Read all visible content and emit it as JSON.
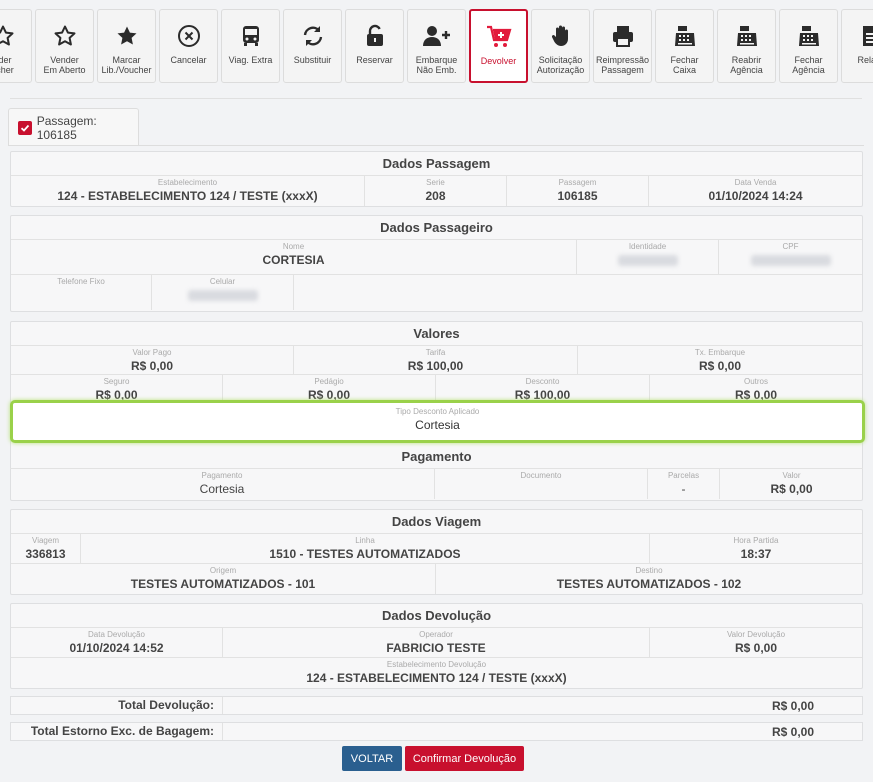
{
  "toolbar": [
    {
      "name": "sell-button",
      "icon": "star-outline-icon",
      "label": "nder\nucher"
    },
    {
      "name": "sell-open-button",
      "icon": "star-outline-icon",
      "label": "Vender\nEm Aberto"
    },
    {
      "name": "mark-lib-voucher-button",
      "icon": "star-solid-icon",
      "label": "Marcar\nLib./Voucher"
    },
    {
      "name": "cancel-button",
      "icon": "circle-x-icon",
      "label": "Cancelar"
    },
    {
      "name": "extra-trip-button",
      "icon": "bus-icon",
      "label": "Viag. Extra"
    },
    {
      "name": "replace-button",
      "icon": "sync-icon",
      "label": "Substituir"
    },
    {
      "name": "reserve-button",
      "icon": "unlock-icon",
      "label": "Reservar"
    },
    {
      "name": "boarding-not-emb-button",
      "icon": "user-plus-icon",
      "label": "Embarque\nNão Emb."
    },
    {
      "name": "return-button",
      "icon": "cart-plus-icon",
      "label": "Devolver",
      "active": true
    },
    {
      "name": "request-authorization-button",
      "icon": "hand-icon",
      "label": "Solicitação\nAutorização"
    },
    {
      "name": "reprint-ticket-button",
      "icon": "printer-icon",
      "label": "Reimpressão\nPassagem"
    },
    {
      "name": "close-cashier-button",
      "icon": "cash-register-icon",
      "label": "Fechar\nCaixa"
    },
    {
      "name": "reopen-agency-button",
      "icon": "cash-register-icon",
      "label": "Reabrir\nAgência"
    },
    {
      "name": "close-agency-button",
      "icon": "cash-register-icon",
      "label": "Fechar\nAgência"
    },
    {
      "name": "reports-button",
      "icon": "document-icon",
      "label": "Relató"
    }
  ],
  "tab": {
    "label": "Passagem: 106185"
  },
  "dados_passagem": {
    "title": "Dados Passagem",
    "estabelecimento_cap": "Estabelecimento",
    "estabelecimento": "124 - ESTABELECIMENTO 124 / TESTE (xxxX)",
    "serie_cap": "Serie",
    "serie": "208",
    "passagem_cap": "Passagem",
    "passagem": "106185",
    "data_venda_cap": "Data Venda",
    "data_venda": "01/10/2024 14:24"
  },
  "dados_passageiro": {
    "title": "Dados Passageiro",
    "nome_cap": "Nome",
    "nome": "CORTESIA",
    "identidade_cap": "Identidade",
    "cpf_cap": "CPF",
    "telefone_cap": "Telefone Fixo",
    "celular_cap": "Celular"
  },
  "valores": {
    "title": "Valores",
    "valor_pago_cap": "Valor Pago",
    "valor_pago": "R$ 0,00",
    "tarifa_cap": "Tarifa",
    "tarifa": "R$ 100,00",
    "tx_embarque_cap": "Tx. Embarque",
    "tx_embarque": "R$ 0,00",
    "seguro_cap": "Seguro",
    "seguro": "R$ 0,00",
    "pedagio_cap": "Pedágio",
    "pedagio": "R$ 0,00",
    "desconto_cap": "Desconto",
    "desconto": "R$ 100,00",
    "outros_cap": "Outros",
    "outros": "R$ 0,00",
    "tipo_desconto_cap": "Tipo Desconto Aplicado",
    "tipo_desconto": "Cortesia"
  },
  "pagamento": {
    "title": "Pagamento",
    "pagamento_cap": "Pagamento",
    "pagamento": "Cortesia",
    "documento_cap": "Documento",
    "documento": "",
    "parcelas_cap": "Parcelas",
    "parcelas": "-",
    "valor_cap": "Valor",
    "valor": "R$ 0,00"
  },
  "dados_viagem": {
    "title": "Dados Viagem",
    "viagem_cap": "Viagem",
    "viagem": "336813",
    "linha_cap": "Linha",
    "linha": "1510 - TESTES AUTOMATIZADOS",
    "hora_cap": "Hora Partida",
    "hora": "18:37",
    "origem_cap": "Origem",
    "origem": "TESTES AUTOMATIZADOS - 101",
    "destino_cap": "Destino",
    "destino": "TESTES AUTOMATIZADOS - 102"
  },
  "dados_devolucao": {
    "title": "Dados Devolução",
    "data_cap": "Data Devolução",
    "data": "01/10/2024 14:52",
    "operador_cap": "Operador",
    "operador": "FABRICIO TESTE",
    "valor_cap": "Valor Devolução",
    "valor": "R$ 0,00",
    "estab_cap": "Estabelecimento Devolução",
    "estab": "124 - ESTABELECIMENTO 124 / TESTE (xxxX)"
  },
  "totais": {
    "total_devolucao_label": "Total Devolução:",
    "total_devolucao": "R$ 0,00",
    "total_estorno_label": "Total Estorno Exc. de Bagagem:",
    "total_estorno": "R$ 0,00"
  },
  "actions": {
    "voltar": "VOLTAR",
    "confirmar": "Confirmar Devolução"
  }
}
